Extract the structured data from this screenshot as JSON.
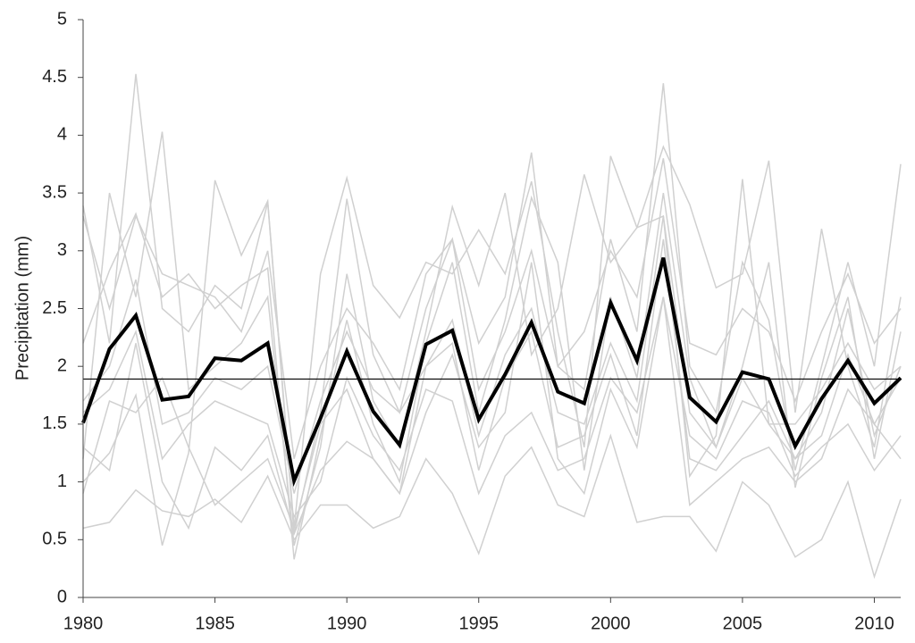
{
  "chart_data": {
    "type": "line",
    "y_label": "Precipitation (mm)",
    "x": [
      1980,
      1981,
      1982,
      1983,
      1984,
      1985,
      1986,
      1987,
      1988,
      1989,
      1990,
      1991,
      1992,
      1993,
      1994,
      1995,
      1996,
      1997,
      1998,
      1999,
      2000,
      2001,
      2002,
      2003,
      2004,
      2005,
      2006,
      2007,
      2008,
      2009,
      2010,
      2011
    ],
    "xlim": [
      1980,
      2011
    ],
    "xticks": [
      1980,
      1985,
      1990,
      1995,
      2000,
      2005,
      2010
    ],
    "ylim": [
      0,
      5
    ],
    "yticks": [
      0,
      0.5,
      1,
      1.5,
      2,
      2.5,
      3,
      3.5,
      4,
      4.5,
      5
    ],
    "grid": false,
    "series": [
      {
        "color": "#d0d0d0",
        "linewidth": 1.5,
        "values": [
          3.39,
          2.2,
          4.53,
          2.5,
          2.3,
          2.7,
          2.5,
          3.42,
          0.55,
          1.6,
          3.45,
          2.1,
          1.6,
          2.5,
          3.1,
          2.2,
          2.6,
          3.85,
          2.0,
          1.8,
          3.1,
          2.3,
          4.45,
          2.0,
          1.6,
          2.9,
          2.4,
          1.1,
          2.0,
          2.9,
          2.0,
          3.75
        ]
      },
      {
        "color": "#d0d0d0",
        "linewidth": 1.5,
        "values": [
          1.2,
          3.5,
          2.6,
          4.03,
          1.8,
          2.0,
          2.2,
          2.6,
          0.45,
          1.3,
          2.8,
          1.7,
          1.3,
          2.3,
          3.38,
          2.7,
          3.5,
          2.1,
          2.5,
          3.66,
          2.9,
          3.2,
          3.9,
          3.4,
          2.68,
          2.8,
          3.78,
          1.6,
          3.19,
          2.0,
          1.3,
          2.6
        ]
      },
      {
        "color": "#d0d0d0",
        "linewidth": 1.5,
        "values": [
          0.6,
          0.65,
          0.93,
          0.75,
          0.7,
          0.85,
          0.65,
          1.05,
          0.5,
          0.8,
          0.8,
          0.6,
          0.7,
          1.2,
          0.9,
          0.38,
          1.05,
          1.3,
          0.8,
          0.7,
          1.4,
          0.65,
          0.7,
          0.7,
          0.4,
          1.0,
          0.8,
          0.35,
          0.5,
          1.0,
          0.18,
          0.85
        ]
      },
      {
        "color": "#d0d0d0",
        "linewidth": 1.5,
        "values": [
          1.0,
          1.25,
          1.75,
          0.45,
          1.25,
          3.61,
          2.96,
          3.43,
          0.6,
          2.8,
          3.63,
          2.7,
          2.42,
          2.9,
          2.8,
          3.18,
          2.8,
          3.6,
          2.3,
          1.3,
          3.82,
          3.2,
          3.3,
          1.05,
          1.4,
          3.62,
          1.5,
          1.2,
          1.6,
          2.5,
          1.4,
          2.0
        ]
      },
      {
        "color": "#d0d0d0",
        "linewidth": 1.5,
        "values": [
          2.2,
          2.83,
          3.32,
          2.6,
          2.8,
          2.5,
          2.7,
          2.85,
          0.33,
          1.4,
          2.4,
          1.5,
          1.0,
          2.2,
          2.9,
          1.6,
          2.4,
          3.46,
          2.9,
          1.1,
          2.6,
          1.9,
          3.5,
          1.9,
          1.3,
          2.0,
          2.9,
          0.95,
          1.9,
          2.6,
          1.2,
          2.3
        ]
      },
      {
        "color": "#d0d0d0",
        "linewidth": 1.5,
        "values": [
          1.3,
          1.1,
          2.2,
          1.0,
          0.6,
          1.3,
          1.1,
          1.4,
          0.55,
          1.1,
          1.35,
          1.2,
          0.9,
          1.6,
          2.1,
          1.3,
          1.6,
          2.9,
          1.2,
          0.9,
          1.8,
          1.3,
          2.6,
          1.4,
          1.2,
          1.7,
          1.6,
          1.05,
          1.3,
          1.5,
          1.1,
          1.4
        ]
      },
      {
        "color": "#d0d0d0",
        "linewidth": 1.5,
        "values": [
          1.7,
          2.0,
          2.75,
          1.5,
          1.6,
          1.9,
          1.8,
          2.0,
          0.9,
          1.7,
          2.3,
          1.8,
          1.6,
          2.0,
          2.4,
          1.4,
          2.1,
          2.5,
          1.6,
          1.5,
          2.2,
          1.7,
          3.3,
          1.6,
          1.3,
          1.9,
          1.5,
          1.5,
          1.8,
          2.2,
          1.8,
          2.0
        ]
      },
      {
        "color": "#d0d0d0",
        "linewidth": 1.5,
        "values": [
          1.6,
          1.8,
          2.3,
          1.2,
          1.5,
          1.7,
          1.6,
          1.5,
          0.7,
          1.0,
          1.9,
          1.4,
          1.1,
          1.8,
          1.7,
          0.9,
          1.4,
          1.6,
          1.1,
          1.2,
          1.9,
          1.6,
          2.6,
          0.8,
          1.0,
          1.2,
          1.3,
          1.0,
          1.2,
          1.8,
          1.5,
          1.2
        ]
      },
      {
        "color": "#d0d0d0",
        "linewidth": 1.5,
        "values": [
          0.9,
          1.7,
          1.6,
          1.9,
          1.3,
          0.8,
          1.0,
          1.2,
          0.6,
          1.5,
          1.8,
          1.2,
          0.9,
          2.0,
          2.2,
          1.1,
          1.9,
          2.3,
          1.3,
          1.4,
          2.1,
          1.4,
          3.1,
          1.2,
          1.1,
          1.4,
          1.7,
          1.2,
          1.4,
          2.1,
          1.5,
          1.9
        ]
      },
      {
        "color": "#d0d0d0",
        "linewidth": 1.5,
        "values": [
          3.3,
          2.5,
          3.3,
          2.8,
          2.7,
          2.6,
          2.3,
          3.0,
          1.2,
          2.0,
          2.5,
          2.2,
          1.8,
          2.8,
          3.1,
          1.8,
          2.3,
          3.0,
          2.0,
          2.3,
          3.0,
          2.6,
          3.8,
          2.2,
          2.1,
          2.5,
          2.3,
          1.7,
          2.3,
          2.8,
          2.2,
          2.5
        ]
      },
      {
        "color": "#000000",
        "linewidth": 4,
        "values": [
          1.51,
          2.15,
          2.44,
          1.71,
          1.74,
          2.07,
          2.05,
          2.2,
          1.01,
          1.55,
          2.13,
          1.61,
          1.32,
          2.19,
          2.31,
          1.54,
          1.93,
          2.38,
          1.78,
          1.68,
          2.55,
          2.05,
          2.94,
          1.73,
          1.52,
          1.95,
          1.89,
          1.31,
          1.72,
          2.05,
          1.68,
          1.9
        ]
      }
    ],
    "hlines": [
      {
        "value": 1.89,
        "color": "#000000"
      }
    ]
  }
}
